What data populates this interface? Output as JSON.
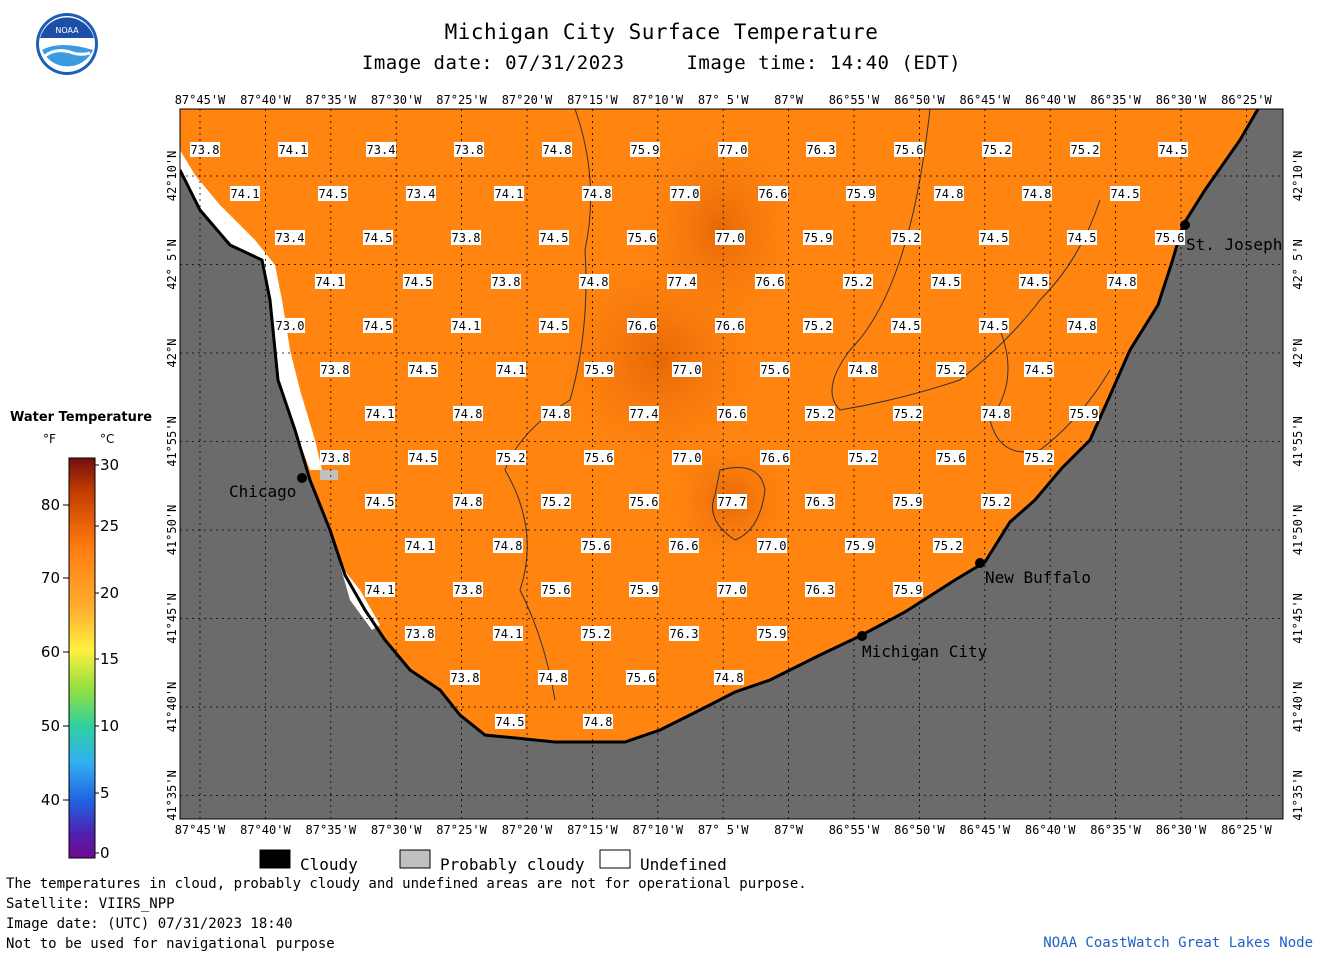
{
  "header": {
    "title": "Michigan City Surface Temperature",
    "image_date_label": "Image date: 07/31/2023",
    "image_time_label": "Image time: 14:40 (EDT)"
  },
  "logo": {
    "text": "NOAA"
  },
  "axes": {
    "lon_labels": [
      "87°45'W",
      "87°40'W",
      "87°35'W",
      "87°30'W",
      "87°25'W",
      "87°20'W",
      "87°15'W",
      "87°10'W",
      "87° 5'W",
      "87°W",
      "86°55'W",
      "86°50'W",
      "86°45'W",
      "86°40'W",
      "86°35'W",
      "86°30'W",
      "86°25'W"
    ],
    "lat_labels": [
      "42°10'N",
      "42° 5'N",
      "42°N",
      "41°55'N",
      "41°50'N",
      "41°45'N",
      "41°40'N",
      "41°35'N"
    ]
  },
  "cities": [
    {
      "name": "Chicago"
    },
    {
      "name": "St. Joseph"
    },
    {
      "name": "New Buffalo"
    },
    {
      "name": "Michigan City"
    }
  ],
  "temperatures": {
    "rows": [
      [
        "73.8",
        "74.1",
        "73.4",
        "73.8",
        "74.8",
        "75.9",
        "77.0",
        "76.3",
        "75.6",
        "75.2",
        "75.2",
        "74.5"
      ],
      [
        "74.1",
        "74.5",
        "73.4",
        "74.1",
        "74.8",
        "77.0",
        "76.6",
        "75.9",
        "74.8",
        "74.8",
        "74.5"
      ],
      [
        "73.4",
        "74.5",
        "73.8",
        "74.5",
        "75.6",
        "77.0",
        "75.9",
        "75.2",
        "74.5",
        "74.5",
        "75.6"
      ],
      [
        "74.1",
        "74.5",
        "73.8",
        "74.8",
        "77.4",
        "76.6",
        "75.2",
        "74.5",
        "74.5",
        "74.8"
      ],
      [
        "73.0",
        "74.5",
        "74.1",
        "74.5",
        "76.6",
        "76.6",
        "75.2",
        "74.5",
        "74.5",
        "74.8"
      ],
      [
        "73.8",
        "74.5",
        "74.1",
        "75.9",
        "77.0",
        "75.6",
        "74.8",
        "75.2",
        "74.5"
      ],
      [
        "74.1",
        "74.8",
        "74.8",
        "77.4",
        "76.6",
        "75.2",
        "75.2",
        "74.8",
        "75.9"
      ],
      [
        "73.8",
        "74.5",
        "75.2",
        "75.6",
        "77.0",
        "76.6",
        "75.2",
        "75.6",
        "75.2"
      ],
      [
        "74.5",
        "74.8",
        "75.2",
        "75.6",
        "77.7",
        "76.3",
        "75.9",
        "75.2"
      ],
      [
        "74.1",
        "74.8",
        "75.6",
        "76.6",
        "77.0",
        "75.9",
        "75.2"
      ],
      [
        "74.1",
        "73.8",
        "75.6",
        "75.9",
        "77.0",
        "76.3",
        "75.9"
      ],
      [
        "73.8",
        "74.1",
        "75.2",
        "76.3",
        "75.9"
      ],
      [
        "73.8",
        "74.8",
        "75.6",
        "74.8"
      ],
      [
        "74.5",
        "74.8"
      ]
    ]
  },
  "color_legend": {
    "title": "Water Temperature",
    "unit_f": "°F",
    "unit_c": "°C",
    "f_ticks": [
      "80",
      "70",
      "60",
      "50",
      "40"
    ],
    "c_ticks": [
      "30",
      "25",
      "20",
      "15",
      "10",
      "5",
      "0"
    ],
    "colors": [
      "#7a0a0a",
      "#d24a00",
      "#ff8c10",
      "#ffe030",
      "#a0e040",
      "#30d0a0",
      "#30a0ff",
      "#3050e0",
      "#6010a0"
    ]
  },
  "key_legend": [
    {
      "label": "Cloudy",
      "color": "#000000"
    },
    {
      "label": "Probably cloudy",
      "color": "#c0c0c0"
    },
    {
      "label": "Undefined",
      "color": "#ffffff"
    }
  ],
  "footer": {
    "line1": "The temperatures in cloud, probably cloudy and undefined areas are not for operational purpose.",
    "line2": "Satellite: VIIRS_NPP",
    "line3": "Image date: (UTC) 07/31/2023  18:40",
    "line4": "Not to be used for navigational purpose",
    "credit": "NOAA CoastWatch Great Lakes Node"
  },
  "colors": {
    "water": "#ff8410",
    "water_warm": "#ec6e06",
    "land": "#6b6b6b"
  }
}
